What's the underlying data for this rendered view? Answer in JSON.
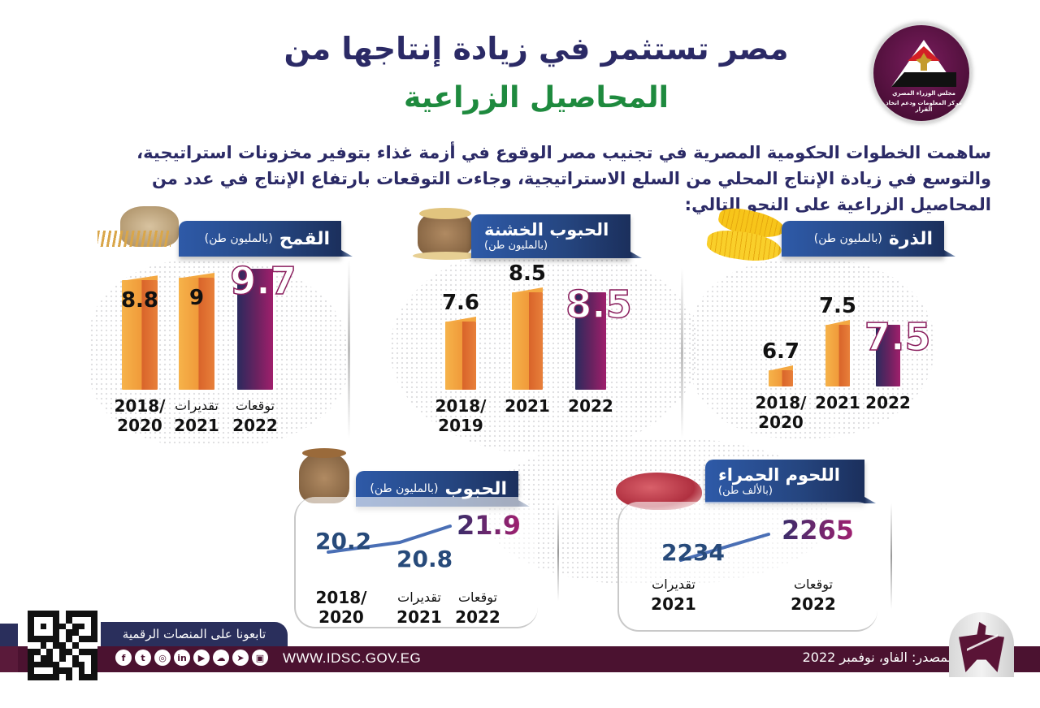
{
  "header": {
    "title_line1": "مصر تستثمر في زيادة إنتاجها من",
    "title_line2": "المحاصيل الزراعية",
    "logo_text_line1": "مجلس الوزراء المصري",
    "logo_text_line2": "مركز المعلومات ودعم اتخاذ القرار",
    "intro": "ساهمت الخطوات الحكومية المصرية في تجنيب مصر الوقوع في أزمة غذاء بتوفير مخزونات استراتيجية، والتوسع في زيادة الإنتاج المحلي من السلع الاستراتيجية، وجاءت التوقعات بارتفاع الإنتاج في عدد من المحاصيل الزراعية على النحو التالي:"
  },
  "colors": {
    "title_navy": "#2b2a66",
    "title_green": "#1e8a3e",
    "ribbon_blue": "#25457f",
    "bar_orange": "#f09a3a",
    "bar_forecast": "#a01f6c",
    "footer_maroon": "#4b1230",
    "footer_navy": "#2a2f5c",
    "line_blue": "#4a6fb5"
  },
  "chart_data": [
    {
      "type": "bar",
      "title": "القمح",
      "unit": "(بالمليون طن)",
      "icon": "wheat-sack-icon",
      "categories": [
        {
          "year": "2018/\n2020",
          "year_l1": "2018/",
          "year_l2": "2020",
          "tag": ""
        },
        {
          "year": "2021",
          "year_l1": "2021",
          "year_l2": "",
          "tag": "تقديرات"
        },
        {
          "year": "2022",
          "year_l1": "2022",
          "year_l2": "",
          "tag": "توقعات"
        }
      ],
      "values": [
        8.8,
        9,
        9.7
      ],
      "labels": [
        "8.8",
        "9",
        "9.7"
      ],
      "forecast_index": 2,
      "ylim": [
        0,
        10
      ]
    },
    {
      "type": "bar",
      "title": "الحبوب الخشنة",
      "unit": "(بالمليون طن)",
      "icon": "grain-sack-icon",
      "categories": [
        {
          "year_l1": "2018/",
          "year_l2": "2019",
          "tag": ""
        },
        {
          "year_l1": "2021",
          "year_l2": "",
          "tag": ""
        },
        {
          "year_l1": "2022",
          "year_l2": "",
          "tag": ""
        }
      ],
      "values": [
        7.6,
        8.5,
        8.5
      ],
      "labels": [
        "7.6",
        "8.5",
        "8.5"
      ],
      "forecast_index": 2,
      "ylim": [
        0,
        10
      ]
    },
    {
      "type": "bar",
      "title": "الذرة",
      "unit": "(بالمليون طن)",
      "icon": "corn-icon",
      "categories": [
        {
          "year_l1": "2018/",
          "year_l2": "2020",
          "tag": ""
        },
        {
          "year_l1": "2021",
          "year_l2": "",
          "tag": ""
        },
        {
          "year_l1": "2022",
          "year_l2": "",
          "tag": ""
        }
      ],
      "values": [
        6.7,
        7.5,
        7.5
      ],
      "labels": [
        "6.7",
        "7.5",
        "7.5"
      ],
      "forecast_index": 2,
      "ylim": [
        0,
        10
      ]
    },
    {
      "type": "line",
      "title": "الحبوب",
      "unit": "(بالمليون طن)",
      "icon": "grain-bag-icon",
      "categories": [
        {
          "year_l1": "2018/",
          "year_l2": "2020",
          "tag": ""
        },
        {
          "year_l1": "2021",
          "year_l2": "",
          "tag": "تقديرات"
        },
        {
          "year_l1": "2022",
          "year_l2": "",
          "tag": "توقعات"
        }
      ],
      "values": [
        20.2,
        20.8,
        21.9
      ],
      "labels": [
        "20.2",
        "20.8",
        "21.9"
      ]
    },
    {
      "type": "line",
      "title": "اللحوم الحمراء",
      "unit": "(بالألف طن)",
      "icon": "red-meat-icon",
      "categories": [
        {
          "year_l1": "2021",
          "year_l2": "",
          "tag": "تقديرات"
        },
        {
          "year_l1": "2022",
          "year_l2": "",
          "tag": "توقعات"
        }
      ],
      "values": [
        2234,
        2265
      ],
      "labels": [
        "2234",
        "2265"
      ]
    }
  ],
  "footer": {
    "follow_text": "تابعونا على المنصات الرقمية",
    "url": "WWW.IDSC.GOV.EG",
    "source": "المصدر: الفاو، نوفمبر 2022",
    "social_icons": [
      "facebook-icon",
      "twitter-icon",
      "instagram-icon",
      "linkedin-icon",
      "youtube-icon",
      "soundcloud-icon",
      "telegram-icon",
      "app-icon"
    ],
    "social_glyphs": [
      "f",
      "t",
      "◎",
      "in",
      "▶",
      "☁",
      "➤",
      "▣"
    ]
  }
}
